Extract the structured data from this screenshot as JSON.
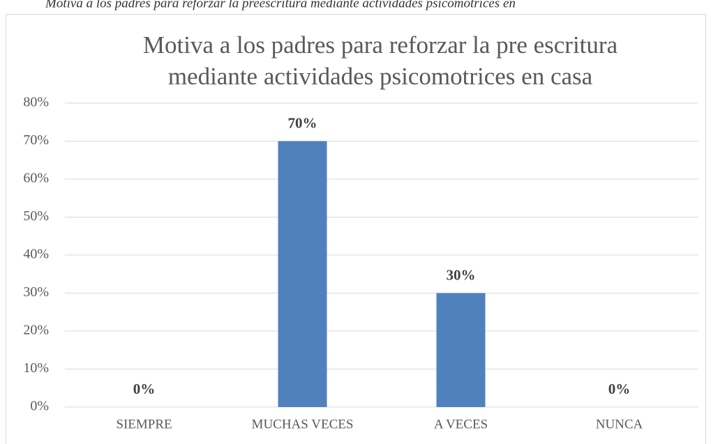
{
  "caption": "Motiva a los padres para reforzar la preescritura mediante actividades psicomotrices en",
  "chart_data": {
    "type": "bar",
    "title": [
      "Motiva a los padres para reforzar la pre escritura",
      "mediante actividades psicomotrices en casa"
    ],
    "categories": [
      "SIEMPRE",
      "MUCHAS VECES",
      "A VECES",
      "NUNCA"
    ],
    "values": [
      0,
      70,
      30,
      0
    ],
    "value_labels": [
      "0%",
      "70%",
      "30%",
      "0%"
    ],
    "color": "#4f81bd",
    "ylim": [
      0,
      80
    ],
    "yticks": [
      {
        "value": 0,
        "label": "0%"
      },
      {
        "value": 10,
        "label": "10%"
      },
      {
        "value": 20,
        "label": "20%"
      },
      {
        "value": 30,
        "label": "30%"
      },
      {
        "value": 40,
        "label": "40%"
      },
      {
        "value": 50,
        "label": "50%"
      },
      {
        "value": 60,
        "label": "60%"
      },
      {
        "value": 70,
        "label": "70%"
      },
      {
        "value": 80,
        "label": "80%"
      }
    ],
    "grid": true
  }
}
